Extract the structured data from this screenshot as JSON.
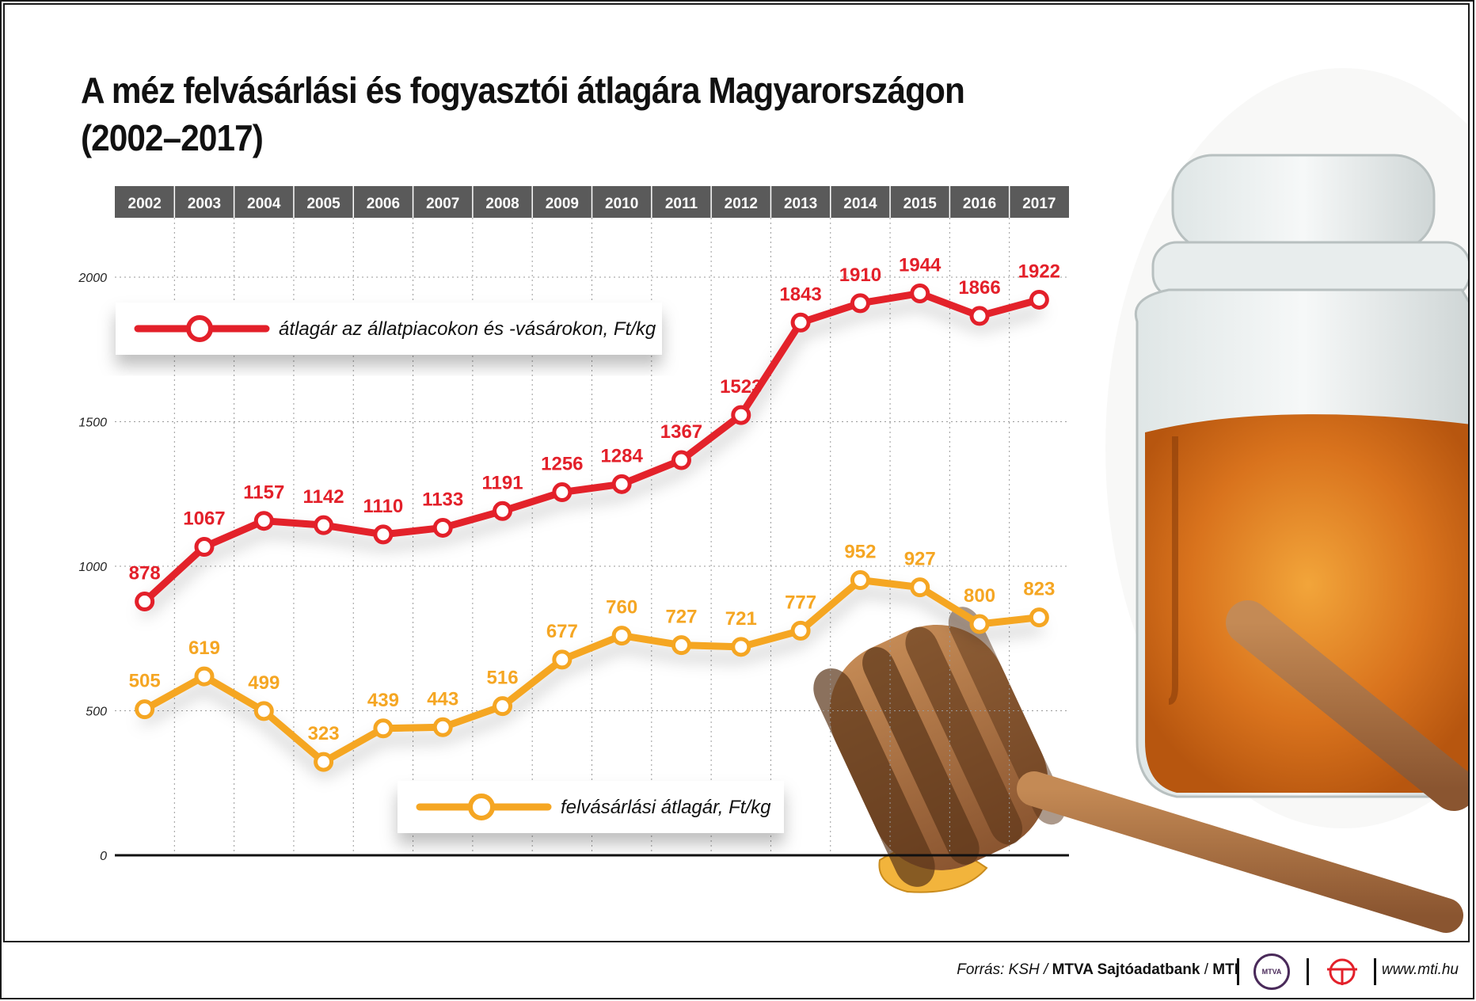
{
  "title_line1": "A méz felvásárlási és fogyasztói átlagára Magyarországon",
  "title_line2": "(2002–2017)",
  "colors": {
    "red": "#e3202a",
    "orange": "#f5a623",
    "header_bg": "#5a5a5a",
    "header_text": "#ffffff"
  },
  "chart_data": {
    "type": "line",
    "categories": [
      "2002",
      "2003",
      "2004",
      "2005",
      "2006",
      "2007",
      "2008",
      "2009",
      "2010",
      "2011",
      "2012",
      "2013",
      "2014",
      "2015",
      "2016",
      "2017"
    ],
    "yticks": [
      "0",
      "500",
      "1000",
      "1500",
      "2000"
    ],
    "ylim": [
      0,
      2000
    ],
    "grid": true,
    "legend_placement": "in-plot",
    "series": [
      {
        "name": "átlagár az állatpiacokon és -vásárokon, Ft/kg",
        "color": "#e3202a",
        "values": [
          878,
          1067,
          1157,
          1142,
          1110,
          1133,
          1191,
          1256,
          1284,
          1367,
          1523,
          1843,
          1910,
          1944,
          1866,
          1922
        ]
      },
      {
        "name": "felvásárlási átlagár, Ft/kg",
        "color": "#f5a623",
        "values": [
          505,
          619,
          499,
          323,
          439,
          443,
          516,
          677,
          760,
          727,
          721,
          777,
          952,
          927,
          800,
          823
        ]
      }
    ]
  },
  "footer": {
    "source_prefix": "Forrás: KSH / ",
    "source_bank": "MTVA Sajtóadatbank",
    "source_sep": " / ",
    "source_mti": "MTI",
    "logo1_text": "MTVA",
    "url": "www.mti.hu"
  }
}
